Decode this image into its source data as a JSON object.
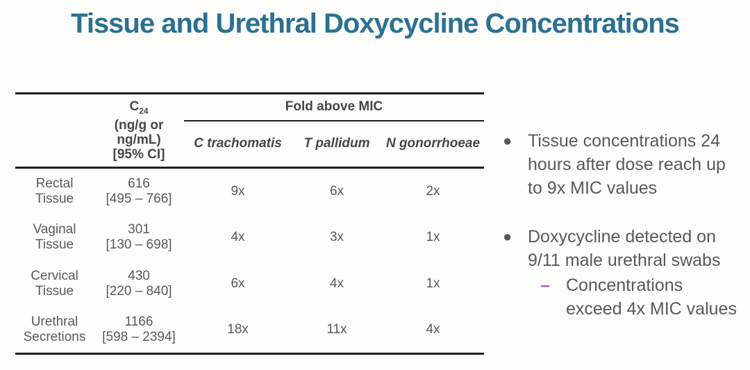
{
  "title": "Tissue and Urethral Doxycycline Concentrations",
  "colors": {
    "title_teal": "#2B7191",
    "body_text_gray": "#595959",
    "table_border_black": "#1E1E1E",
    "sub_bullet_dash_purple": "#B05EC2"
  },
  "table": {
    "c24_header": {
      "symbol": "C",
      "subscript": "24",
      "unit_lines": "(ng/g or\nng/mL)\n[95% CI]"
    },
    "group_header": "Fold above MIC",
    "species": [
      "C trachomatis",
      "T pallidum",
      "N gonorrhoeae"
    ],
    "rows": [
      {
        "tissue": "Rectal\nTissue",
        "c24": "616\n[495 – 766]",
        "ct": "9x",
        "tp": "6x",
        "ng": "2x"
      },
      {
        "tissue": "Vaginal\nTissue",
        "c24": "301\n[130 – 698]",
        "ct": "4x",
        "tp": "3x",
        "ng": "1x"
      },
      {
        "tissue": "Cervical\nTissue",
        "c24": "430\n[220 – 840]",
        "ct": "6x",
        "tp": "4x",
        "ng": "1x"
      },
      {
        "tissue": "Urethral\nSecretions",
        "c24": "1166\n[598 – 2394]",
        "ct": "18x",
        "tp": "11x",
        "ng": "4x"
      }
    ]
  },
  "bullets": {
    "marker": "●",
    "sub_marker": "–",
    "bullet1": "Tissue concentrations 24\nhours after dose reach up\nto 9x MIC values",
    "bullet2": "Doxycycline detected on\n9/11 male urethral swabs",
    "sub_bullet": "Concentrations\nexceed 4x MIC values"
  }
}
